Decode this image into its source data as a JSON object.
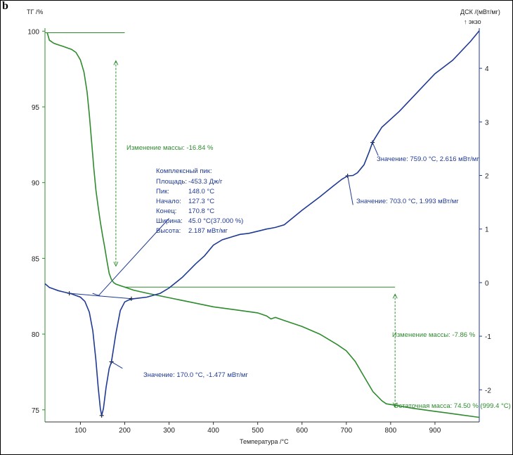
{
  "panel_label": "b",
  "colors": {
    "tg": "#2e8b2e",
    "dsc": "#1f3a93",
    "axis": "#333333"
  },
  "chart_data": {
    "type": "line",
    "x_axis": {
      "label": "Температура /°C",
      "range": [
        20,
        1000
      ],
      "ticks": [
        100,
        200,
        300,
        400,
        500,
        600,
        700,
        800,
        900
      ]
    },
    "y_left": {
      "label": "ТГ /%",
      "range": [
        74.2,
        100.2
      ],
      "ticks": [
        75,
        80,
        85,
        90,
        95,
        100
      ]
    },
    "y_right": {
      "label": "ДСК /(мВт/мг)",
      "sublabel": "↑ экзо",
      "range": [
        -2.6,
        4.75
      ],
      "ticks": [
        -2,
        -1,
        0,
        1,
        2,
        3,
        4
      ]
    },
    "grid": false,
    "series": [
      {
        "name": "ТГ",
        "axis": "left",
        "x": [
          25,
          30,
          40,
          50,
          60,
          70,
          80,
          90,
          100,
          108,
          115,
          120,
          125,
          130,
          135,
          140,
          145,
          150,
          155,
          160,
          165,
          170,
          175,
          180,
          185,
          190,
          195,
          200,
          220,
          250,
          300,
          350,
          400,
          450,
          500,
          520,
          530,
          540,
          560,
          600,
          640,
          680,
          700,
          720,
          740,
          760,
          780,
          790,
          800,
          850,
          900,
          950,
          1000
        ],
        "y": [
          99.9,
          99.4,
          99.2,
          99.1,
          99.0,
          98.9,
          98.8,
          98.6,
          98.1,
          97.3,
          96.0,
          94.5,
          92.8,
          91.0,
          89.5,
          88.4,
          87.4,
          86.5,
          85.7,
          84.8,
          84.0,
          83.6,
          83.4,
          83.3,
          83.25,
          83.2,
          83.15,
          83.1,
          82.9,
          82.7,
          82.4,
          82.1,
          81.8,
          81.6,
          81.4,
          81.2,
          81.0,
          81.1,
          80.9,
          80.5,
          80.0,
          79.3,
          78.9,
          78.2,
          77.2,
          76.2,
          75.6,
          75.4,
          75.35,
          75.1,
          74.9,
          74.7,
          74.5
        ]
      },
      {
        "name": "ДСК",
        "axis": "right",
        "x": [
          20,
          30,
          40,
          50,
          60,
          70,
          80,
          90,
          100,
          110,
          120,
          128,
          135,
          140,
          145,
          148,
          152,
          158,
          165,
          170,
          180,
          190,
          200,
          210,
          220,
          250,
          280,
          300,
          330,
          360,
          380,
          400,
          420,
          440,
          460,
          480,
          500,
          520,
          540,
          560,
          600,
          640,
          670,
          690,
          703,
          715,
          725,
          740,
          752,
          759,
          765,
          780,
          820,
          860,
          900,
          940,
          980,
          1000
        ],
        "y": [
          -0.02,
          -0.09,
          -0.12,
          -0.15,
          -0.17,
          -0.19,
          -0.21,
          -0.24,
          -0.27,
          -0.35,
          -0.55,
          -0.9,
          -1.45,
          -1.95,
          -2.35,
          -2.48,
          -2.35,
          -1.95,
          -1.6,
          -1.477,
          -0.95,
          -0.52,
          -0.36,
          -0.32,
          -0.3,
          -0.27,
          -0.2,
          -0.1,
          0.1,
          0.35,
          0.5,
          0.7,
          0.8,
          0.85,
          0.9,
          0.92,
          0.96,
          1.0,
          1.03,
          1.08,
          1.35,
          1.6,
          1.8,
          1.93,
          1.993,
          2.0,
          2.05,
          2.2,
          2.45,
          2.616,
          2.7,
          2.9,
          3.2,
          3.55,
          3.9,
          4.15,
          4.5,
          4.7
        ]
      }
    ],
    "annotations": {
      "mass_change_1": "Изменение массы: -16.84 %",
      "mass_change_2": "Изменение массы: -7.86 %",
      "residual_mass": "Остаточная масса: 74.50 % (999.4 °C)",
      "complex_peak": {
        "title": "Комплексный пик:",
        "rows": [
          {
            "label": "Площадь:",
            "value": "-453.3 Дж/г"
          },
          {
            "label": "Пик:",
            "value": "148.0 °C"
          },
          {
            "label": "Начало:",
            "value": "127.3 °C"
          },
          {
            "label": "Конец:",
            "value": "170.8 °C"
          },
          {
            "label": "Ширина:",
            "value": "45.0 °C(37.000 %)"
          },
          {
            "label": "Высота:",
            "value": "2.187 мВт/мг"
          }
        ]
      },
      "value_170": "Значение: 170.0 °C, -1.477 мВт/мг",
      "value_703": "Значение: 703.0 °C, 1.993 мВт/мг",
      "value_759": "Значение: 759.0 °C, 2.616 мВт/мг"
    }
  }
}
